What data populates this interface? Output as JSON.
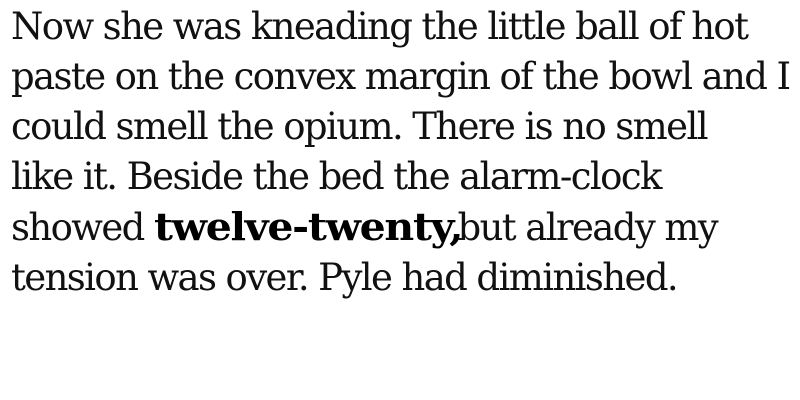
{
  "paragraph": {
    "line1": "Now she was kneading the little ball of hot",
    "line2": "paste on the convex margin of the bowl and I",
    "line3": "could smell the opium. There is no smell",
    "line4": "like it. Beside the bed the alarm-clock",
    "line5_before": "showed ",
    "line5_bold": "twelve-twenty,",
    "line5_after": " but already my",
    "line6": "tension was over. Pyle had diminished."
  },
  "colors": {
    "text": "#111111",
    "background": "#ffffff"
  }
}
